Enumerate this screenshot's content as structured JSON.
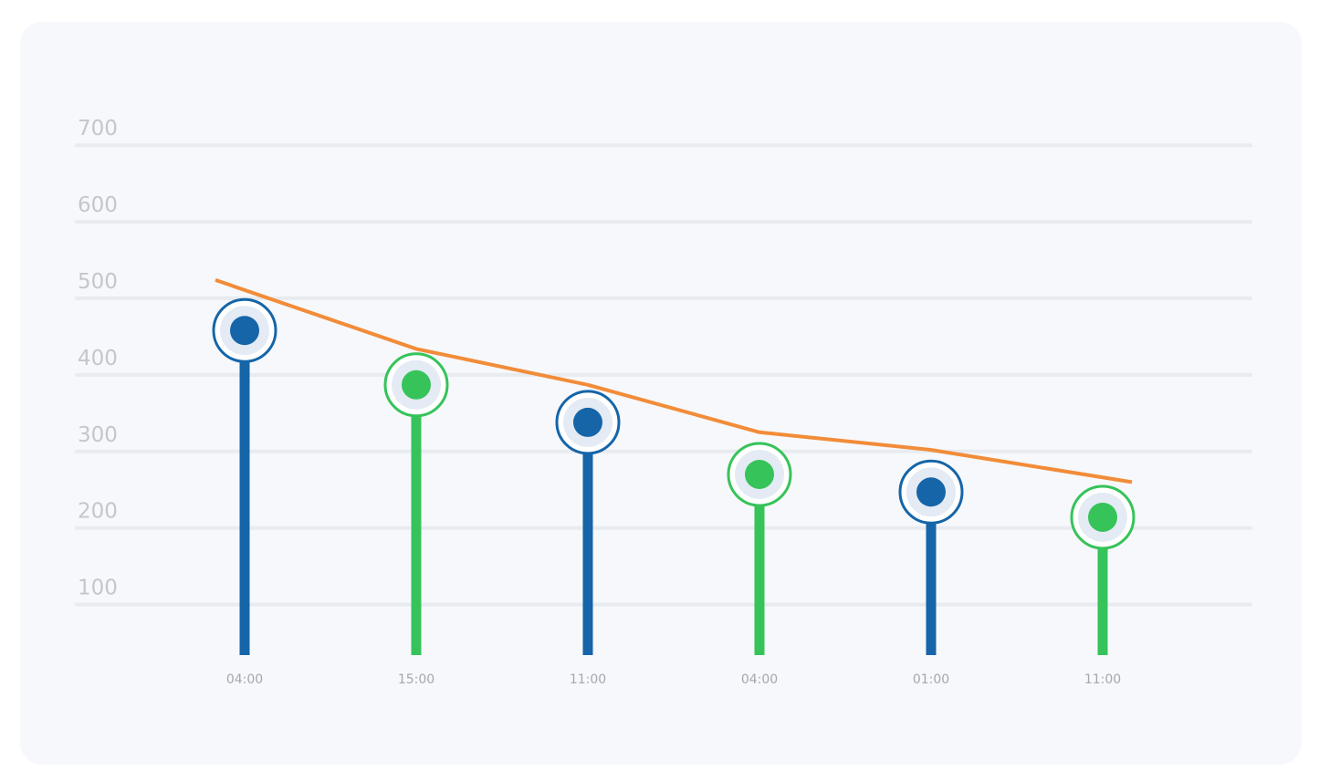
{
  "chart_data": {
    "type": "lollipop",
    "title": "",
    "xlabel": "",
    "ylabel": "",
    "categories": [
      "04:00",
      "15:00",
      "11:00",
      "04:00",
      "01:00",
      "11:00"
    ],
    "y_ticks": [
      100,
      200,
      300,
      400,
      500,
      600,
      700
    ],
    "ylim": [
      35,
      700
    ],
    "grid": true,
    "series": [
      {
        "type": "lollipop",
        "values": [
          458,
          387,
          338,
          270,
          247,
          214
        ],
        "colors": [
          "#1565a8",
          "#36c35a",
          "#1565a8",
          "#36c35a",
          "#1565a8",
          "#36c35a"
        ]
      },
      {
        "type": "line",
        "values": [
          524,
          434,
          387,
          325,
          302,
          260
        ],
        "color": "#f28c38"
      }
    ]
  }
}
